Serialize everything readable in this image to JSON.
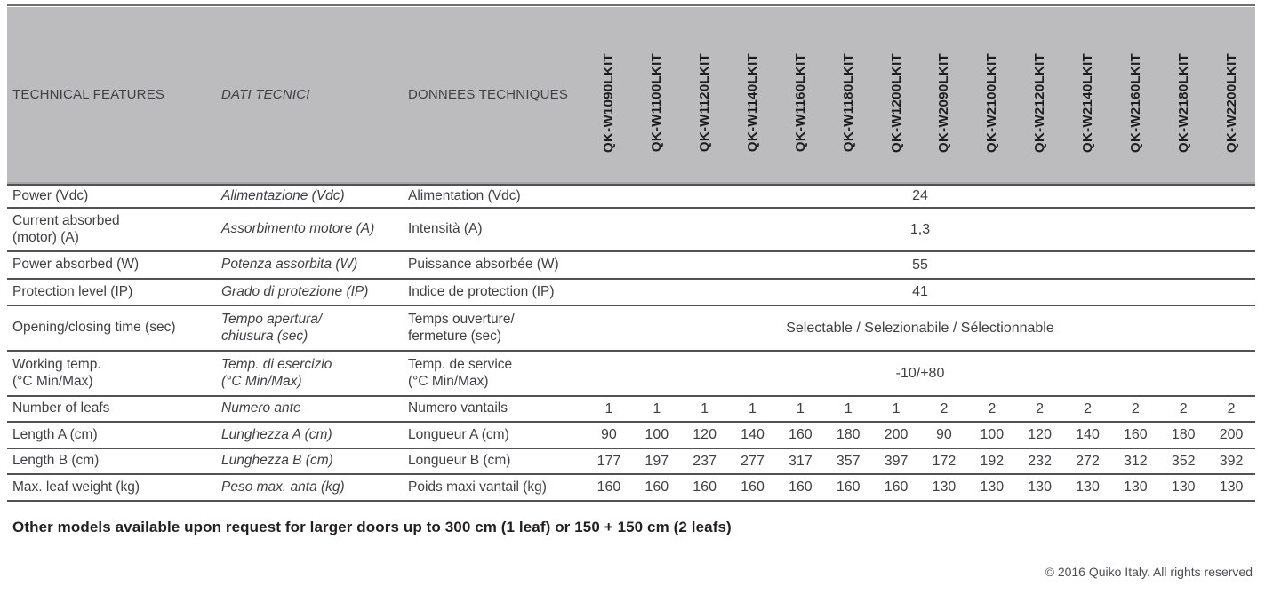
{
  "header": {
    "col1": "TECHNICAL FEATURES",
    "col2": "DATI TECNICI",
    "col3": "DONNEES TECHNIQUES",
    "models": [
      "QK-W1090LKIT",
      "QK-W1100LKIT",
      "QK-W1120LKIT",
      "QK-W1140LKIT",
      "QK-W1160LKIT",
      "QK-W1180LKIT",
      "QK-W1200LKIT",
      "QK-W2090LKIT",
      "QK-W2100LKIT",
      "QK-W2120LKIT",
      "QK-W2140LKIT",
      "QK-W2160LKIT",
      "QK-W2180LKIT",
      "QK-W2200LKIT"
    ]
  },
  "rows": [
    {
      "en": "Power (Vdc)",
      "it": "Alimentazione (Vdc)",
      "fr": "Alimentation (Vdc)",
      "value": "24"
    },
    {
      "en": "Current absorbed\n(motor) (A)",
      "it": "Assorbimento motore (A)",
      "fr": "Intensità (A)",
      "value": "1,3"
    },
    {
      "en": "Power absorbed (W)",
      "it": "Potenza assorbita (W)",
      "fr": "Puissance absorbée (W)",
      "value": "55"
    },
    {
      "en": "Protection level (IP)",
      "it": "Grado di protezione (IP)",
      "fr": "Indice de protection (IP)",
      "value": "41"
    },
    {
      "en": "Opening/closing time (sec)",
      "it": "Tempo apertura/\nchiusura (sec)",
      "fr": "Temps ouverture/\nfermeture (sec)",
      "value": "Selectable / Selezionabile / Sélectionnable"
    },
    {
      "en": "Working temp.\n(°C Min/Max)",
      "it": "Temp. di esercizio\n(°C Min/Max)",
      "fr": "Temp. de service\n(°C Min/Max)",
      "value": "-10/+80"
    },
    {
      "en": "Number of leafs",
      "it": "Numero ante",
      "fr": "Numero vantails",
      "values": [
        "1",
        "1",
        "1",
        "1",
        "1",
        "1",
        "1",
        "2",
        "2",
        "2",
        "2",
        "2",
        "2",
        "2"
      ]
    },
    {
      "en": "Length A (cm)",
      "it": "Lunghezza A (cm)",
      "fr": "Longueur A (cm)",
      "values": [
        "90",
        "100",
        "120",
        "140",
        "160",
        "180",
        "200",
        "90",
        "100",
        "120",
        "140",
        "160",
        "180",
        "200"
      ]
    },
    {
      "en": "Length B (cm)",
      "it": "Lunghezza B (cm)",
      "fr": "Longueur B (cm)",
      "values": [
        "177",
        "197",
        "237",
        "277",
        "317",
        "357",
        "397",
        "172",
        "192",
        "232",
        "272",
        "312",
        "352",
        "392"
      ]
    },
    {
      "en": "Max. leaf weight (kg)",
      "it": "Peso max. anta (kg)",
      "fr": "Poids maxi vantail (kg)",
      "values": [
        "160",
        "160",
        "160",
        "160",
        "160",
        "160",
        "160",
        "130",
        "130",
        "130",
        "130",
        "130",
        "130",
        "130"
      ]
    }
  ],
  "footer": {
    "note": "Other models available upon request for larger doors up to 300 cm (1 leaf) or 150 + 150 cm (2 leafs)",
    "copyright": "© 2016 Quiko Italy. All rights reserved"
  },
  "colors": {
    "header_bg": "#bcbcbe",
    "rule": "#515254",
    "top_rule": "#6d6e70",
    "text": "#3f4042"
  }
}
